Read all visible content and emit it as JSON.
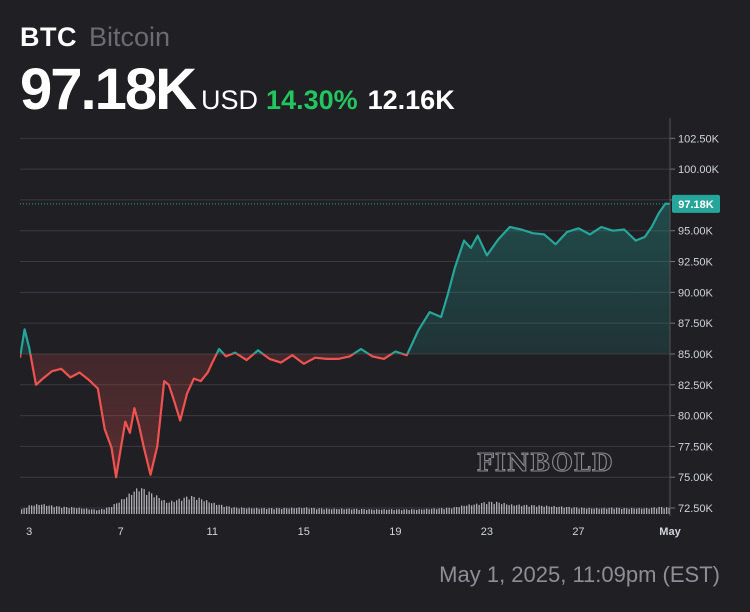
{
  "header": {
    "symbol": "BTC",
    "name": "Bitcoin",
    "price": "97.18K",
    "currency": "USD",
    "change_pct": "14.30%",
    "change_abs": "12.16K"
  },
  "timestamp": "May 1, 2025, 11:09pm (EST)",
  "watermark": "FINBOLD",
  "colors": {
    "background": "#1f1f24",
    "up": "#26a69a",
    "down": "#ef5350",
    "positive_text": "#22c55e",
    "grid": "#3a3a40",
    "axis_text": "#d1d4dc",
    "volume": "#c8c8cc"
  },
  "chart_data": {
    "type": "line",
    "x_unit": "day",
    "x_range": [
      2.6,
      31.0
    ],
    "ylim": [
      72500,
      103500
    ],
    "yticks": [
      72500,
      75000,
      77500,
      80000,
      82500,
      85000,
      87500,
      90000,
      92500,
      95000,
      97500,
      100000,
      102500
    ],
    "ytick_labels": [
      "72.50K",
      "75.00K",
      "77.50K",
      "80.00K",
      "82.50K",
      "85.00K",
      "87.50K",
      "90.00K",
      "92.50K",
      "95.00K",
      "97.50K",
      "100.00K",
      "102.50K"
    ],
    "xticks": [
      3,
      7,
      11,
      15,
      19,
      23,
      27,
      31
    ],
    "xtick_labels": [
      "3",
      "7",
      "11",
      "15",
      "19",
      "23",
      "27",
      "May"
    ],
    "baseline": 85020,
    "last_price_label": "97.18K",
    "last_price": 97180,
    "grid": true,
    "price": {
      "x": [
        2.6,
        2.8,
        3.0,
        3.3,
        3.6,
        4.0,
        4.4,
        4.8,
        5.2,
        5.6,
        6.0,
        6.3,
        6.6,
        6.8,
        7.0,
        7.2,
        7.4,
        7.6,
        7.8,
        8.0,
        8.3,
        8.6,
        8.9,
        9.1,
        9.3,
        9.6,
        9.9,
        10.2,
        10.5,
        10.8,
        11.0,
        11.3,
        11.6,
        12.0,
        12.5,
        13.0,
        13.5,
        14.0,
        14.5,
        15.0,
        15.5,
        16.0,
        16.5,
        17.0,
        17.5,
        18.0,
        18.5,
        19.0,
        19.5,
        20.0,
        20.5,
        21.0,
        21.3,
        21.6,
        22.0,
        22.3,
        22.6,
        23.0,
        23.5,
        24.0,
        24.5,
        25.0,
        25.5,
        26.0,
        26.5,
        27.0,
        27.5,
        28.0,
        28.5,
        29.0,
        29.5,
        29.9,
        30.2,
        30.5,
        30.8,
        31.0
      ],
      "y": [
        84700,
        87000,
        85500,
        82500,
        83000,
        83600,
        83800,
        83100,
        83500,
        82900,
        82200,
        78900,
        77400,
        75000,
        77300,
        79500,
        78600,
        80600,
        79200,
        77500,
        75200,
        77500,
        82800,
        82500,
        81400,
        79600,
        81800,
        83000,
        82800,
        83500,
        84300,
        85400,
        84800,
        85100,
        84500,
        85300,
        84600,
        84300,
        84900,
        84200,
        84700,
        84600,
        84600,
        84800,
        85400,
        84800,
        84600,
        85200,
        84900,
        86900,
        88400,
        88000,
        89900,
        92000,
        94200,
        93600,
        94600,
        93000,
        94300,
        95300,
        95100,
        94800,
        94700,
        93900,
        94900,
        95200,
        94700,
        95300,
        95000,
        95100,
        94200,
        94500,
        95300,
        96400,
        97200,
        97180
      ]
    },
    "volume": {
      "x": [
        2.6,
        3.0,
        3.5,
        4.0,
        4.5,
        5.0,
        5.5,
        6.0,
        6.5,
        7.0,
        7.5,
        7.8,
        8.0,
        8.5,
        9.0,
        9.5,
        10.0,
        10.5,
        11.0,
        11.5,
        12.0,
        13.0,
        14.0,
        15.0,
        16.0,
        17.0,
        18.0,
        19.0,
        20.0,
        20.5,
        21.0,
        21.5,
        22.0,
        22.5,
        23.0,
        23.5,
        24.0,
        25.0,
        26.0,
        27.0,
        27.5,
        28.0,
        28.5,
        29.0,
        29.5,
        30.0,
        30.5,
        31.0
      ],
      "v": [
        0.35,
        0.75,
        0.85,
        0.7,
        0.6,
        0.55,
        0.45,
        0.35,
        0.6,
        1.2,
        1.9,
        2.3,
        2.1,
        1.6,
        1.0,
        1.25,
        1.55,
        1.3,
        0.95,
        0.7,
        0.55,
        0.5,
        0.5,
        0.55,
        0.45,
        0.45,
        0.4,
        0.4,
        0.4,
        0.45,
        0.5,
        0.55,
        0.75,
        0.85,
        1.05,
        1.0,
        0.8,
        0.75,
        0.65,
        0.55,
        0.5,
        0.5,
        0.55,
        0.5,
        0.5,
        0.5,
        0.6,
        0.55
      ]
    }
  }
}
